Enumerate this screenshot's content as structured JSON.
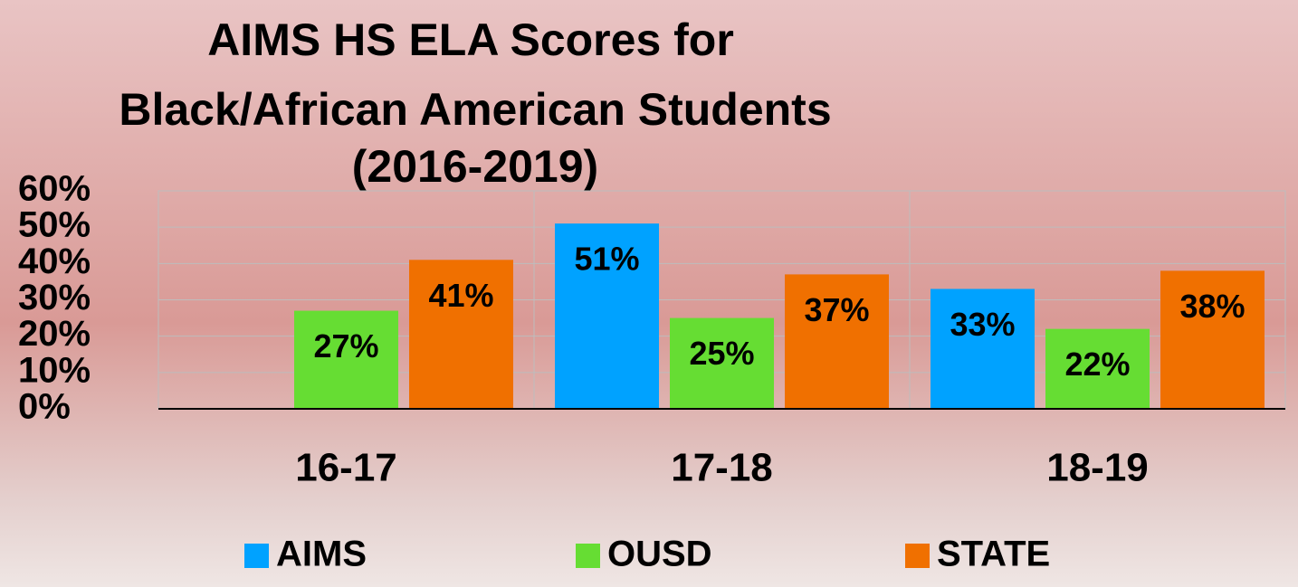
{
  "chart_data": {
    "type": "bar",
    "title": [
      "AIMS HS ELA Scores for",
      "Black/African American Students",
      "(2016-2019)"
    ],
    "categories": [
      "16-17",
      "17-18",
      "18-19"
    ],
    "series": [
      {
        "name": "AIMS",
        "color": "#00a2ff",
        "values": [
          null,
          51,
          33
        ],
        "value_labels": [
          null,
          "51%",
          "33%"
        ]
      },
      {
        "name": "OUSD",
        "color": "#66dd33",
        "values": [
          27,
          25,
          22
        ],
        "value_labels": [
          "27%",
          "25%",
          "22%"
        ]
      },
      {
        "name": "STATE",
        "color": "#f07000",
        "values": [
          41,
          37,
          38
        ],
        "value_labels": [
          "41%",
          "37%",
          "38%"
        ]
      }
    ],
    "ylim": [
      0,
      60
    ],
    "yticks": [
      {
        "value": 0,
        "label": "0%"
      },
      {
        "value": 10,
        "label": "10%"
      },
      {
        "value": 20,
        "label": "20%"
      },
      {
        "value": 30,
        "label": "30%"
      },
      {
        "value": 40,
        "label": "40%"
      },
      {
        "value": 50,
        "label": "50%"
      },
      {
        "value": 60,
        "label": "60%"
      }
    ],
    "grid": true,
    "legend": "bottom"
  }
}
